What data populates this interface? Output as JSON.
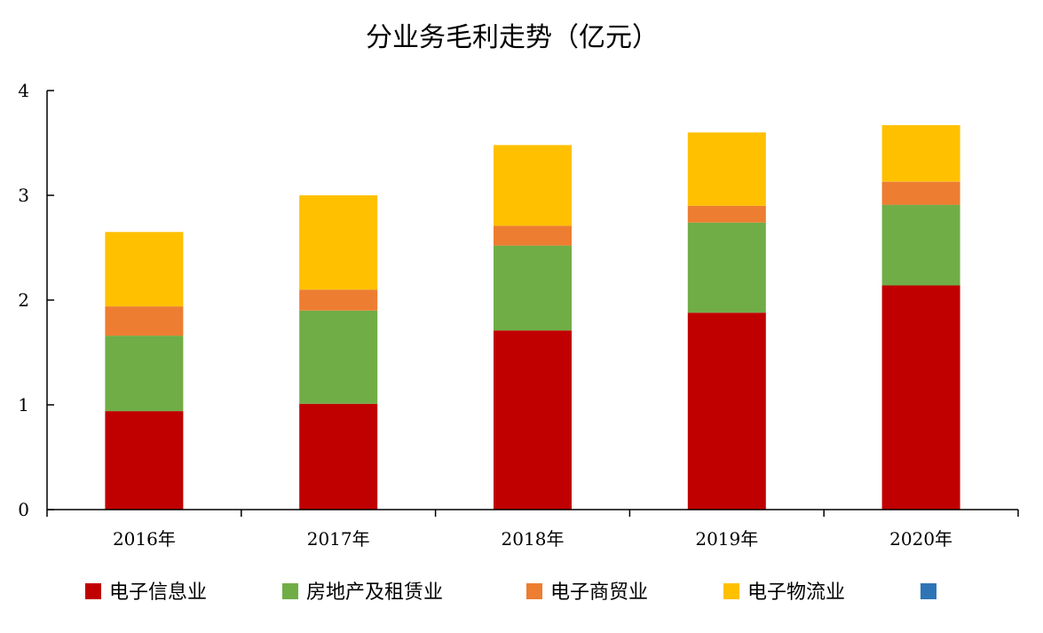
{
  "chart_data": {
    "type": "bar",
    "stacked": true,
    "title": "分业务毛利走势（亿元）",
    "xlabel": "",
    "ylabel": "",
    "ylim": [
      0,
      4
    ],
    "yticks": [
      "0",
      "1",
      "2",
      "3",
      "4"
    ],
    "categories": [
      "2016年",
      "2017年",
      "2018年",
      "2019年",
      "2020年"
    ],
    "series": [
      {
        "name": "电子信息业",
        "color": "#C00000",
        "values": [
          0.94,
          1.01,
          1.71,
          1.88,
          2.14
        ]
      },
      {
        "name": "房地产及租赁业",
        "color": "#70AD47",
        "values": [
          0.72,
          0.89,
          0.81,
          0.86,
          0.77
        ]
      },
      {
        "name": "电子商贸业",
        "color": "#ED7D31",
        "values": [
          0.28,
          0.2,
          0.19,
          0.16,
          0.22
        ]
      },
      {
        "name": "电子物流业",
        "color": "#FFC000",
        "values": [
          0.71,
          0.9,
          0.77,
          0.7,
          0.54
        ]
      },
      {
        "name": "",
        "color": "#2E75B6",
        "values": [
          0,
          0,
          0,
          0,
          0
        ]
      }
    ],
    "legend_position": "bottom",
    "grid": false
  }
}
